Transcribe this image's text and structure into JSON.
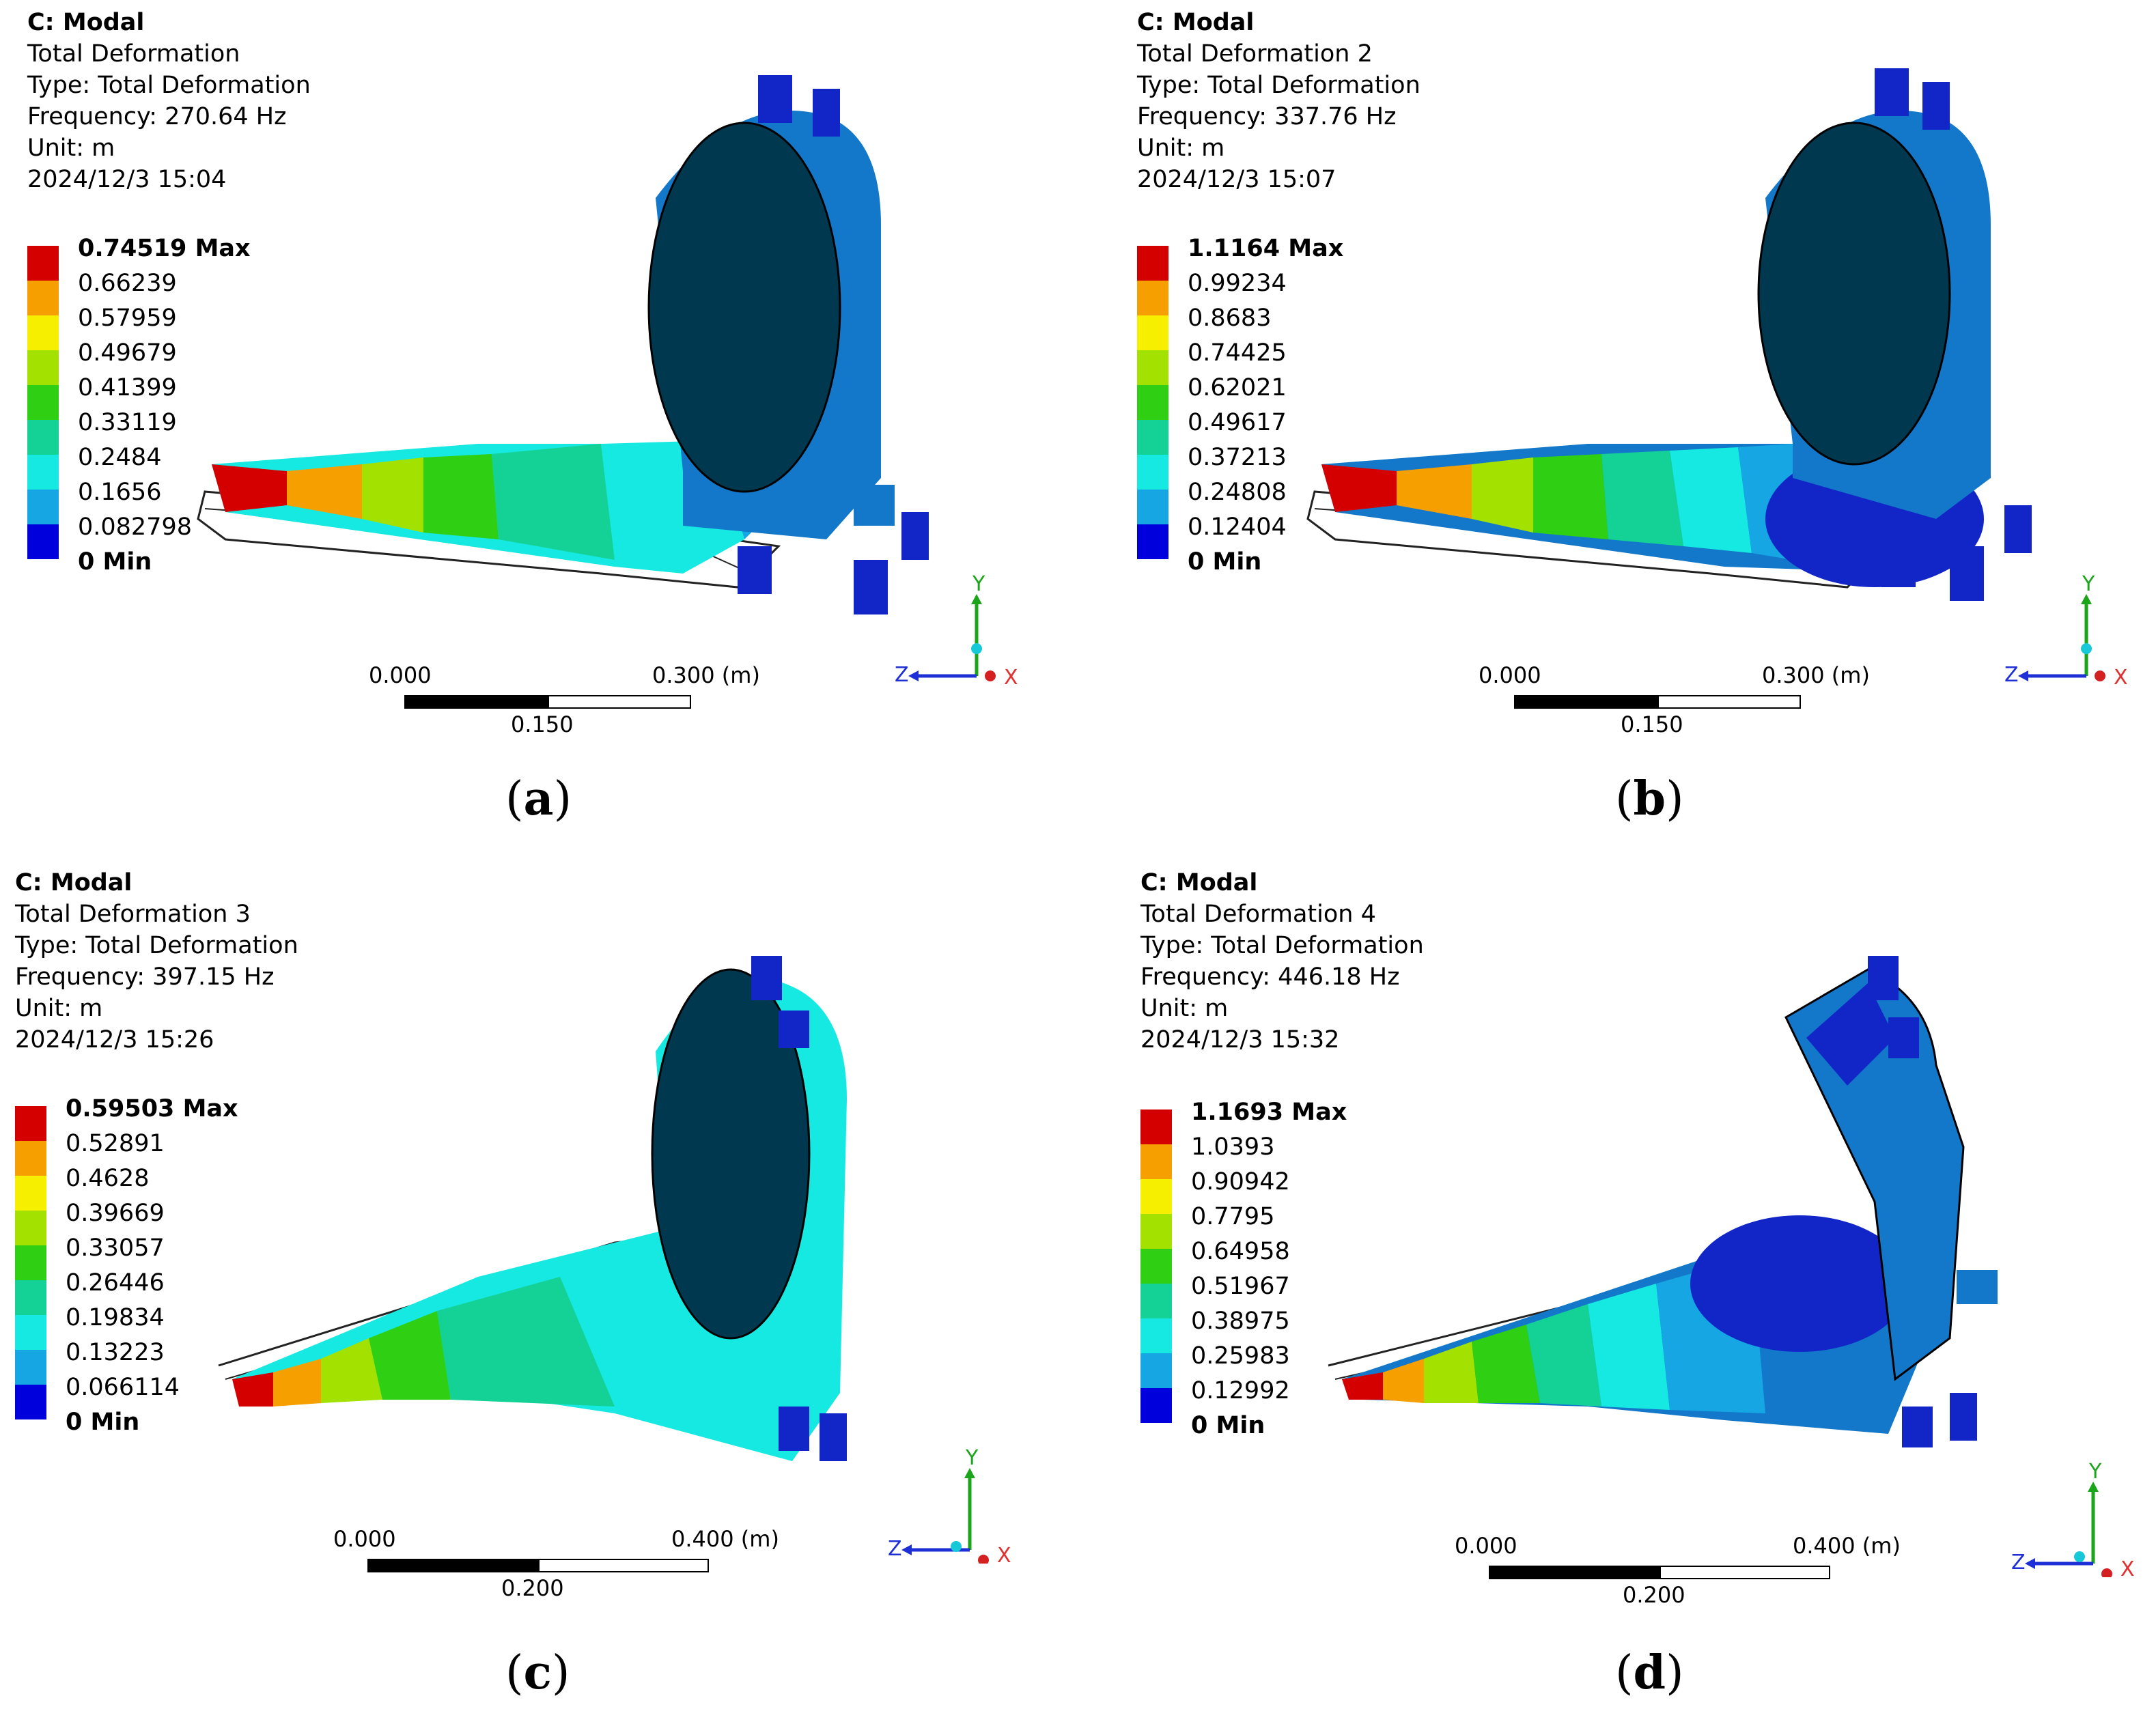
{
  "colors": {
    "legend": [
      "#d40000",
      "#f5a000",
      "#f6f000",
      "#a3e200",
      "#2fcf14",
      "#14d296",
      "#16e8e2",
      "#15a6e3",
      "#0000dc"
    ],
    "body_dark": "#00384f",
    "body_blue": "#1378c9",
    "body_deep": "#1226c8",
    "axis_y": "#1ba51b",
    "axis_z": "#1f2fd6",
    "axis_x": "#e03030"
  },
  "panels": [
    {
      "id": "a",
      "caption_open": "(",
      "caption_letter": "a",
      "caption_close": ")",
      "header": "C: Modal",
      "result_name": "Total Deformation",
      "type_line": "Type: Total Deformation",
      "frequency_line": "Frequency: 270.64 Hz",
      "unit_line": "Unit: m",
      "date_line": "2024/12/3 15:04",
      "legend_labels": [
        "0.74519 Max",
        "0.66239",
        "0.57959",
        "0.49679",
        "0.41399",
        "0.33119",
        "0.2484",
        "0.1656",
        "0.082798",
        "0 Min"
      ],
      "scale_left": "0.000",
      "scale_mid": "0.150",
      "scale_right": "0.300 (m)"
    },
    {
      "id": "b",
      "caption_open": "(",
      "caption_letter": "b",
      "caption_close": ")",
      "header": "C: Modal",
      "result_name": "Total Deformation 2",
      "type_line": "Type: Total Deformation",
      "frequency_line": "Frequency: 337.76 Hz",
      "unit_line": "Unit: m",
      "date_line": "2024/12/3 15:07",
      "legend_labels": [
        "1.1164 Max",
        "0.99234",
        "0.8683",
        "0.74425",
        "0.62021",
        "0.49617",
        "0.37213",
        "0.24808",
        "0.12404",
        "0 Min"
      ],
      "scale_left": "0.000",
      "scale_mid": "0.150",
      "scale_right": "0.300 (m)"
    },
    {
      "id": "c",
      "caption_open": "(",
      "caption_letter": "c",
      "caption_close": ")",
      "header": "C: Modal",
      "result_name": "Total Deformation 3",
      "type_line": "Type: Total Deformation",
      "frequency_line": "Frequency: 397.15 Hz",
      "unit_line": "Unit: m",
      "date_line": "2024/12/3 15:26",
      "legend_labels": [
        "0.59503 Max",
        "0.52891",
        "0.4628",
        "0.39669",
        "0.33057",
        "0.26446",
        "0.19834",
        "0.13223",
        "0.066114",
        "0 Min"
      ],
      "scale_left": "0.000",
      "scale_mid": "0.200",
      "scale_right": "0.400 (m)"
    },
    {
      "id": "d",
      "caption_open": "(",
      "caption_letter": "d",
      "caption_close": ")",
      "header": "C: Modal",
      "result_name": "Total Deformation 4",
      "type_line": "Type: Total Deformation",
      "frequency_line": "Frequency: 446.18 Hz",
      "unit_line": "Unit: m",
      "date_line": "2024/12/3 15:32",
      "legend_labels": [
        "1.1693 Max",
        "1.0393",
        "0.90942",
        "0.7795",
        "0.64958",
        "0.51967",
        "0.38975",
        "0.25983",
        "0.12992",
        "0 Min"
      ],
      "scale_left": "0.000",
      "scale_mid": "0.200",
      "scale_right": "0.400 (m)"
    }
  ],
  "triad": {
    "y": "Y",
    "z": "Z",
    "x": "X"
  }
}
